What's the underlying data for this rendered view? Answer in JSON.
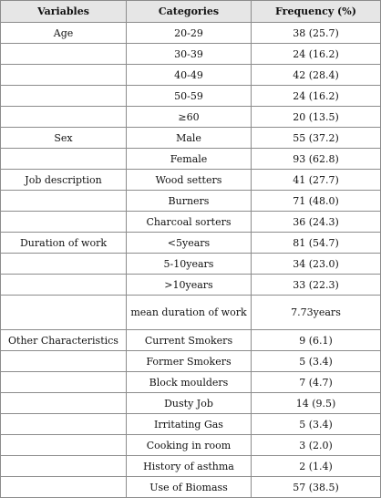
{
  "headers": [
    "Variables",
    "Categories",
    "Frequency (%)"
  ],
  "rows": [
    {
      "variable": "Age",
      "category": "20-29",
      "frequency": "38 (25.7)"
    },
    {
      "variable": "",
      "category": "30-39",
      "frequency": "24 (16.2)"
    },
    {
      "variable": "",
      "category": "40-49",
      "frequency": "42 (28.4)"
    },
    {
      "variable": "",
      "category": "50-59",
      "frequency": "24 (16.2)"
    },
    {
      "variable": "",
      "category": "≥60",
      "frequency": "20 (13.5)"
    },
    {
      "variable": "Sex",
      "category": "Male",
      "frequency": "55 (37.2)"
    },
    {
      "variable": "",
      "category": "Female",
      "frequency": "93 (62.8)"
    },
    {
      "variable": "Job description",
      "category": "Wood setters",
      "frequency": "41 (27.7)"
    },
    {
      "variable": "",
      "category": "Burners",
      "frequency": "71 (48.0)"
    },
    {
      "variable": "",
      "category": "Charcoal sorters",
      "frequency": "36 (24.3)"
    },
    {
      "variable": "Duration of work",
      "category": "<5years",
      "frequency": "81 (54.7)"
    },
    {
      "variable": "",
      "category": "5-10years",
      "frequency": "34 (23.0)"
    },
    {
      "variable": "",
      "category": ">10years",
      "frequency": "33 (22.3)"
    },
    {
      "variable": "",
      "category": "mean duration of work",
      "frequency": "7.73years"
    },
    {
      "variable": "Other Characteristics",
      "category": "Current Smokers",
      "frequency": "9 (6.1)"
    },
    {
      "variable": "",
      "category": "Former Smokers",
      "frequency": "5 (3.4)"
    },
    {
      "variable": "",
      "category": "Block moulders",
      "frequency": "7 (4.7)"
    },
    {
      "variable": "",
      "category": "Dusty Job",
      "frequency": "14 (9.5)"
    },
    {
      "variable": "",
      "category": "Irritating Gas",
      "frequency": "5 (3.4)"
    },
    {
      "variable": "",
      "category": "Cooking in room",
      "frequency": "3 (2.0)"
    },
    {
      "variable": "",
      "category": "History of asthma",
      "frequency": "2 (1.4)"
    },
    {
      "variable": "",
      "category": "Use of Biomass",
      "frequency": "57 (38.5)"
    }
  ]
}
